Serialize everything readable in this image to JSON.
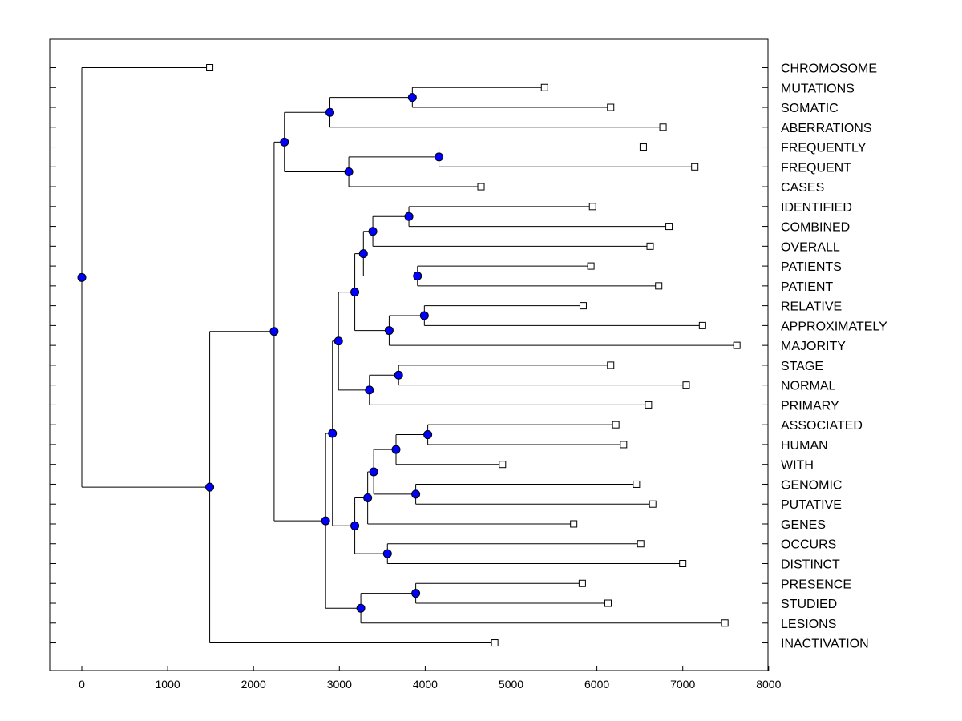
{
  "chart_data": {
    "type": "dendrogram",
    "orientation": "horizontal",
    "xlim": [
      -370,
      8000
    ],
    "xticks": [
      0,
      1000,
      2000,
      3000,
      4000,
      5000,
      6000,
      7000,
      8000
    ],
    "tick_labels": [
      "0",
      "1000",
      "2000",
      "3000",
      "4000",
      "5000",
      "6000",
      "7000",
      "8000"
    ],
    "colors": {
      "node_fill": "#0000ff",
      "line": "#000000",
      "leaf_fill": "#ffffff"
    },
    "leaves": [
      {
        "label": "CHROMOSOME",
        "x": 1490
      },
      {
        "label": "MUTATIONS",
        "x": 5390
      },
      {
        "label": "SOMATIC",
        "x": 6160
      },
      {
        "label": "ABERRATIONS",
        "x": 6770
      },
      {
        "label": "FREQUENTLY",
        "x": 6540
      },
      {
        "label": "FREQUENT",
        "x": 7140
      },
      {
        "label": "CASES",
        "x": 4650
      },
      {
        "label": "IDENTIFIED",
        "x": 5950
      },
      {
        "label": "COMBINED",
        "x": 6840
      },
      {
        "label": "OVERALL",
        "x": 6620
      },
      {
        "label": "PATIENTS",
        "x": 5930
      },
      {
        "label": "PATIENT",
        "x": 6720
      },
      {
        "label": "RELATIVE",
        "x": 5840
      },
      {
        "label": "APPROXIMATELY",
        "x": 7230
      },
      {
        "label": "MAJORITY",
        "x": 7630
      },
      {
        "label": "STAGE",
        "x": 6160
      },
      {
        "label": "NORMAL",
        "x": 7040
      },
      {
        "label": "PRIMARY",
        "x": 6600
      },
      {
        "label": "ASSOCIATED",
        "x": 6220
      },
      {
        "label": "HUMAN",
        "x": 6310
      },
      {
        "label": "WITH",
        "x": 4900
      },
      {
        "label": "GENOMIC",
        "x": 6460
      },
      {
        "label": "PUTATIVE",
        "x": 6650
      },
      {
        "label": "GENES",
        "x": 5730
      },
      {
        "label": "OCCURS",
        "x": 6510
      },
      {
        "label": "DISTINCT",
        "x": 7000
      },
      {
        "label": "PRESENCE",
        "x": 5830
      },
      {
        "label": "STUDIED",
        "x": 6130
      },
      {
        "label": "LESIONS",
        "x": 7490
      },
      {
        "label": "INACTIVATION",
        "x": 4810
      }
    ],
    "merges": [
      {
        "id": "m1",
        "x": 3850,
        "children": [
          1,
          2
        ]
      },
      {
        "id": "m2",
        "x": 2890,
        "children": [
          "m1",
          3
        ]
      },
      {
        "id": "m3",
        "x": 4160,
        "children": [
          4,
          5
        ]
      },
      {
        "id": "m4",
        "x": 3110,
        "children": [
          "m3",
          6
        ]
      },
      {
        "id": "m5",
        "x": 2360,
        "children": [
          "m2",
          "m4"
        ]
      },
      {
        "id": "m6",
        "x": 3810,
        "children": [
          7,
          8
        ]
      },
      {
        "id": "m7",
        "x": 3390,
        "children": [
          "m6",
          9
        ]
      },
      {
        "id": "m8",
        "x": 3910,
        "children": [
          10,
          11
        ]
      },
      {
        "id": "m9",
        "x": 3280,
        "children": [
          "m7",
          "m8"
        ]
      },
      {
        "id": "m10",
        "x": 3990,
        "children": [
          12,
          13
        ]
      },
      {
        "id": "m11",
        "x": 3580,
        "children": [
          "m10",
          14
        ]
      },
      {
        "id": "m12",
        "x": 3180,
        "children": [
          "m9",
          "m11"
        ]
      },
      {
        "id": "m13",
        "x": 3690,
        "children": [
          15,
          16
        ]
      },
      {
        "id": "m14",
        "x": 3350,
        "children": [
          "m13",
          17
        ]
      },
      {
        "id": "m15",
        "x": 2990,
        "children": [
          "m12",
          "m14"
        ]
      },
      {
        "id": "m16",
        "x": 4030,
        "children": [
          18,
          19
        ]
      },
      {
        "id": "m17",
        "x": 3660,
        "children": [
          "m16",
          20
        ]
      },
      {
        "id": "m18",
        "x": 3890,
        "children": [
          21,
          22
        ]
      },
      {
        "id": "m19",
        "x": 3400,
        "children": [
          "m17",
          "m18"
        ]
      },
      {
        "id": "m20",
        "x": 3330,
        "children": [
          "m19",
          23
        ]
      },
      {
        "id": "m21",
        "x": 3560,
        "children": [
          24,
          25
        ]
      },
      {
        "id": "m22",
        "x": 3180,
        "children": [
          "m20",
          "m21"
        ]
      },
      {
        "id": "m23",
        "x": 2920,
        "children": [
          "m15",
          "m22"
        ]
      },
      {
        "id": "m24",
        "x": 3890,
        "children": [
          26,
          27
        ]
      },
      {
        "id": "m25",
        "x": 3250,
        "children": [
          "m24",
          28
        ]
      },
      {
        "id": "m26",
        "x": 2840,
        "children": [
          "m23",
          "m25"
        ]
      },
      {
        "id": "m27",
        "x": 2240,
        "children": [
          "m5",
          "m26"
        ]
      },
      {
        "id": "m28",
        "x": 1490,
        "children": [
          "m27",
          29
        ]
      },
      {
        "id": "m29",
        "x": 0,
        "children": [
          0,
          "m28"
        ]
      }
    ]
  }
}
